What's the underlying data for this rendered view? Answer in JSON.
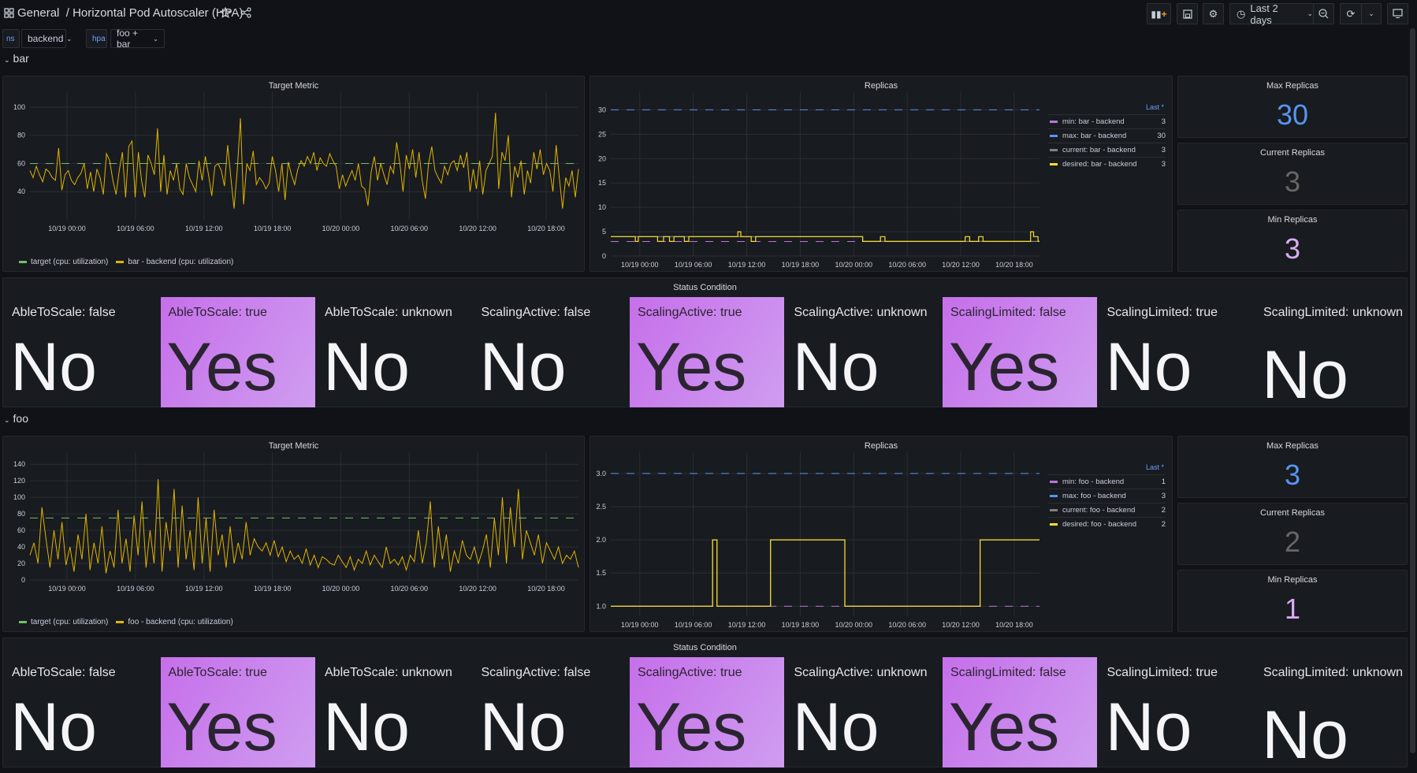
{
  "header": {
    "folder": "General",
    "separator": "/",
    "title": "Horizontal Pod Autoscaler (HPA)",
    "icons": {
      "apps": "grid-icon",
      "star": "star-icon",
      "share": "share-icon"
    }
  },
  "toolbar": {
    "add_panel": "add-panel-icon",
    "save": "save-icon",
    "settings": "gear-icon",
    "time_range": "Last 2 days",
    "zoom_out": "zoom-out-icon",
    "refresh": "refresh-icon",
    "tv": "monitor-icon"
  },
  "variables": [
    {
      "label": "ns",
      "value": "backend"
    },
    {
      "label": "hpa",
      "value": "foo + bar"
    }
  ],
  "colors": {
    "target": "#73bf69",
    "cpu": "#e0b400",
    "min": "#b877d9",
    "max": "#5794f2",
    "current": "#808080",
    "desired": "#fade2a",
    "yes_bg": "#c875e9"
  },
  "sections": [
    {
      "name": "bar",
      "target_panel": {
        "title": "Target Metric",
        "legend": [
          "target (cpu: utilization)",
          "bar - backend (cpu: utilization)"
        ]
      },
      "replicas_panel": {
        "title": "Replicas",
        "legend_header": "Last *",
        "legend": [
          {
            "name": "min: bar - backend",
            "last": "3"
          },
          {
            "name": "max: bar - backend",
            "last": "30"
          },
          {
            "name": "current: bar - backend",
            "last": "3"
          },
          {
            "name": "desired: bar - backend",
            "last": "3"
          }
        ]
      },
      "stats": [
        {
          "title": "Max Replicas",
          "value": "30",
          "color": "#5794f2"
        },
        {
          "title": "Current Replicas",
          "value": "3",
          "color": "#666666"
        },
        {
          "title": "Min Replicas",
          "value": "3",
          "color": "#dcaaf6"
        }
      ],
      "status": {
        "title": "Status Condition",
        "cells": [
          {
            "label": "AbleToScale: false",
            "value": "No"
          },
          {
            "label": "AbleToScale: true",
            "value": "Yes"
          },
          {
            "label": "AbleToScale: unknown",
            "value": "No"
          },
          {
            "label": "ScalingActive: false",
            "value": "No"
          },
          {
            "label": "ScalingActive: true",
            "value": "Yes"
          },
          {
            "label": "ScalingActive: unknown",
            "value": "No"
          },
          {
            "label": "ScalingLimited: false",
            "value": "Yes"
          },
          {
            "label": "ScalingLimited: true",
            "value": "No"
          },
          {
            "label": "ScalingLimited: unknown",
            "value": "No"
          }
        ]
      }
    },
    {
      "name": "foo",
      "target_panel": {
        "title": "Target Metric",
        "legend": [
          "target (cpu: utilization)",
          "foo - backend (cpu: utilization)"
        ]
      },
      "replicas_panel": {
        "title": "Replicas",
        "legend_header": "Last *",
        "legend": [
          {
            "name": "min: foo - backend",
            "last": "1"
          },
          {
            "name": "max: foo - backend",
            "last": "3"
          },
          {
            "name": "current: foo - backend",
            "last": "2"
          },
          {
            "name": "desired: foo - backend",
            "last": "2"
          }
        ]
      },
      "stats": [
        {
          "title": "Max Replicas",
          "value": "3",
          "color": "#5794f2"
        },
        {
          "title": "Current Replicas",
          "value": "2",
          "color": "#666666"
        },
        {
          "title": "Min Replicas",
          "value": "1",
          "color": "#dcaaf6"
        }
      ],
      "status": {
        "title": "Status Condition",
        "cells": [
          {
            "label": "AbleToScale: false",
            "value": "No"
          },
          {
            "label": "AbleToScale: true",
            "value": "Yes"
          },
          {
            "label": "AbleToScale: unknown",
            "value": "No"
          },
          {
            "label": "ScalingActive: false",
            "value": "No"
          },
          {
            "label": "ScalingActive: true",
            "value": "Yes"
          },
          {
            "label": "ScalingActive: unknown",
            "value": "No"
          },
          {
            "label": "ScalingLimited: false",
            "value": "Yes"
          },
          {
            "label": "ScalingLimited: true",
            "value": "No"
          },
          {
            "label": "ScalingLimited: unknown",
            "value": "No"
          }
        ]
      }
    }
  ],
  "chart_data": [
    {
      "type": "line",
      "title": "Target Metric",
      "section": "bar",
      "x_range": [
        "10/18 20:45",
        "10/20 20:50"
      ],
      "x_ticks": [
        "10/19 00:00",
        "10/19 06:00",
        "10/19 12:00",
        "10/19 18:00",
        "10/20 00:00",
        "10/20 06:00",
        "10/20 12:00",
        "10/20 18:00"
      ],
      "y_ticks": [
        40,
        60,
        80,
        100
      ],
      "ylim": [
        20,
        105
      ],
      "grid": true,
      "legend": "bottom",
      "series": [
        {
          "name": "target (cpu: utilization)",
          "constant": 60,
          "dashed": true,
          "color": "#73bf69"
        },
        {
          "name": "bar - backend (cpu: utilization)",
          "color": "#e0b400",
          "values": [
            55,
            50,
            58,
            52,
            47,
            56,
            54,
            50,
            48,
            71,
            41,
            52,
            55,
            48,
            45,
            50,
            53,
            60,
            42,
            54,
            40,
            56,
            50,
            38,
            67,
            62,
            48,
            38,
            55,
            68,
            36,
            72,
            76,
            36,
            68,
            48,
            36,
            66,
            60,
            52,
            85,
            40,
            66,
            38,
            55,
            48,
            60,
            42,
            38,
            60,
            50,
            45,
            40,
            62,
            48,
            65,
            52,
            37,
            58,
            60,
            55,
            44,
            73,
            50,
            28,
            55,
            92,
            31,
            60,
            55,
            69,
            45,
            50,
            47,
            42,
            46,
            65,
            55,
            40,
            60,
            34,
            61,
            52,
            45,
            56,
            62,
            58,
            65,
            60,
            68,
            55,
            64,
            60,
            58,
            67,
            62,
            58,
            42,
            52,
            44,
            50,
            55,
            48,
            60,
            44,
            42,
            30,
            54,
            65,
            48,
            60,
            52,
            45,
            58,
            53,
            75,
            60,
            40,
            66,
            56,
            70,
            50,
            68,
            48,
            35,
            60,
            72,
            55,
            50,
            46,
            58,
            52,
            60,
            62,
            55,
            66,
            57,
            68,
            40,
            56,
            42,
            62,
            38,
            55,
            60,
            65,
            96,
            42,
            68,
            62,
            80,
            36,
            58,
            50,
            62,
            38,
            55,
            46,
            68,
            56,
            70,
            52,
            60,
            55,
            40,
            73,
            50,
            28,
            50,
            44,
            55,
            36,
            56
          ]
        }
      ]
    },
    {
      "type": "line",
      "title": "Replicas",
      "section": "bar",
      "x_range": [
        "10/18 20:45",
        "10/20 20:50"
      ],
      "x_ticks": [
        "10/19 00:00",
        "10/19 06:00",
        "10/19 12:00",
        "10/19 18:00",
        "10/20 00:00",
        "10/20 06:00",
        "10/20 12:00",
        "10/20 18:00"
      ],
      "y_ticks": [
        0,
        5,
        10,
        15,
        20,
        25,
        30
      ],
      "ylim": [
        0,
        32
      ],
      "grid": true,
      "legend": "right",
      "series": [
        {
          "name": "min: bar - backend",
          "constant": 3,
          "dashed": true,
          "color": "#b877d9"
        },
        {
          "name": "max: bar - backend",
          "constant": 30,
          "dashed": true,
          "color": "#5794f2"
        },
        {
          "name": "current: bar - backend",
          "color": "#808080",
          "steps": [
            [
              "10/18 20:45",
              4
            ],
            [
              "10/19 13:00",
              4
            ],
            [
              "10/20 01:00",
              3
            ],
            [
              "10/20 20:50",
              3
            ]
          ]
        },
        {
          "name": "desired: bar - backend",
          "color": "#fade2a",
          "steps": [
            [
              "10/18 20:45",
              4
            ],
            [
              "10/18 23:30",
              3
            ],
            [
              "10/18 23:50",
              4
            ],
            [
              "10/19 02:00",
              3
            ],
            [
              "10/19 02:40",
              4
            ],
            [
              "10/19 03:20",
              3
            ],
            [
              "10/19 03:50",
              4
            ],
            [
              "10/19 05:00",
              3
            ],
            [
              "10/19 05:30",
              4
            ],
            [
              "10/19 11:00",
              5
            ],
            [
              "10/19 11:20",
              4
            ],
            [
              "10/19 12:30",
              3
            ],
            [
              "10/19 13:00",
              4
            ],
            [
              "10/20 01:00",
              3
            ],
            [
              "10/20 03:00",
              4
            ],
            [
              "10/20 03:30",
              3
            ],
            [
              "10/20 12:30",
              4
            ],
            [
              "10/20 13:00",
              3
            ],
            [
              "10/20 14:00",
              4
            ],
            [
              "10/20 14:30",
              3
            ],
            [
              "10/20 19:50",
              5
            ],
            [
              "10/20 20:10",
              4
            ],
            [
              "10/20 20:40",
              3
            ],
            [
              "10/20 20:50",
              3
            ]
          ]
        }
      ]
    },
    {
      "type": "line",
      "title": "Target Metric",
      "section": "foo",
      "x_range": [
        "10/18 20:45",
        "10/20 20:50"
      ],
      "x_ticks": [
        "10/19 00:00",
        "10/19 06:00",
        "10/19 12:00",
        "10/19 18:00",
        "10/20 00:00",
        "10/20 06:00",
        "10/20 12:00",
        "10/20 18:00"
      ],
      "y_ticks": [
        0,
        20,
        40,
        60,
        80,
        100,
        120,
        140
      ],
      "ylim": [
        0,
        145
      ],
      "grid": true,
      "legend": "bottom",
      "series": [
        {
          "name": "target (cpu: utilization)",
          "constant": 75,
          "dashed": true,
          "color": "#73bf69"
        },
        {
          "name": "foo - backend (cpu: utilization)",
          "color": "#e0b400",
          "values": [
            30,
            45,
            20,
            88,
            50,
            15,
            60,
            25,
            70,
            18,
            40,
            10,
            55,
            25,
            80,
            12,
            45,
            20,
            65,
            8,
            35,
            15,
            85,
            20,
            50,
            10,
            78,
            30,
            95,
            15,
            60,
            20,
            122,
            10,
            70,
            35,
            110,
            15,
            90,
            25,
            60,
            12,
            100,
            20,
            75,
            10,
            85,
            30,
            55,
            15,
            65,
            20,
            45,
            25,
            70,
            30,
            50,
            40,
            35,
            45,
            30,
            48,
            28,
            40,
            22,
            35,
            25,
            30,
            20,
            38,
            18,
            30,
            15,
            28,
            25,
            20,
            18,
            30,
            22,
            15,
            28,
            12,
            25,
            20,
            35,
            18,
            30,
            22,
            15,
            40,
            20,
            25,
            18,
            28,
            12,
            30,
            22,
            60,
            20,
            45,
            95,
            15,
            65,
            25,
            55,
            10,
            35,
            20,
            48,
            30,
            25,
            40,
            20,
            35,
            55,
            15,
            75,
            30,
            100,
            20,
            88,
            40,
            110,
            25,
            60,
            45,
            30,
            55,
            20,
            45,
            35,
            25,
            40,
            20,
            30,
            25,
            35,
            15
          ]
        }
      ]
    },
    {
      "type": "line",
      "title": "Replicas",
      "section": "foo",
      "x_range": [
        "10/18 20:45",
        "10/20 20:50"
      ],
      "x_ticks": [
        "10/19 00:00",
        "10/19 06:00",
        "10/19 12:00",
        "10/19 18:00",
        "10/20 00:00",
        "10/20 06:00",
        "10/20 12:00",
        "10/20 18:00"
      ],
      "y_ticks": [
        1.0,
        1.5,
        2.0,
        2.5,
        3.0
      ],
      "ylim": [
        0.85,
        3.2
      ],
      "grid": true,
      "legend": "right",
      "series": [
        {
          "name": "min: foo - backend",
          "constant": 1,
          "dashed": true,
          "color": "#b877d9"
        },
        {
          "name": "max: foo - backend",
          "constant": 3,
          "dashed": true,
          "color": "#5794f2"
        },
        {
          "name": "current: foo - backend",
          "color": "#808080",
          "steps": [
            [
              "10/18 20:45",
              1
            ],
            [
              "10/19 08:10",
              2
            ],
            [
              "10/19 08:40",
              1
            ],
            [
              "10/19 14:40",
              2
            ],
            [
              "10/19 23:00",
              1
            ],
            [
              "10/20 14:10",
              2
            ],
            [
              "10/20 20:50",
              2
            ]
          ]
        },
        {
          "name": "desired: foo - backend",
          "color": "#fade2a",
          "steps": [
            [
              "10/18 20:45",
              1
            ],
            [
              "10/19 08:10",
              2
            ],
            [
              "10/19 08:40",
              1
            ],
            [
              "10/19 14:40",
              2
            ],
            [
              "10/19 23:00",
              1
            ],
            [
              "10/20 14:10",
              2
            ],
            [
              "10/20 20:50",
              2
            ]
          ]
        }
      ]
    }
  ]
}
